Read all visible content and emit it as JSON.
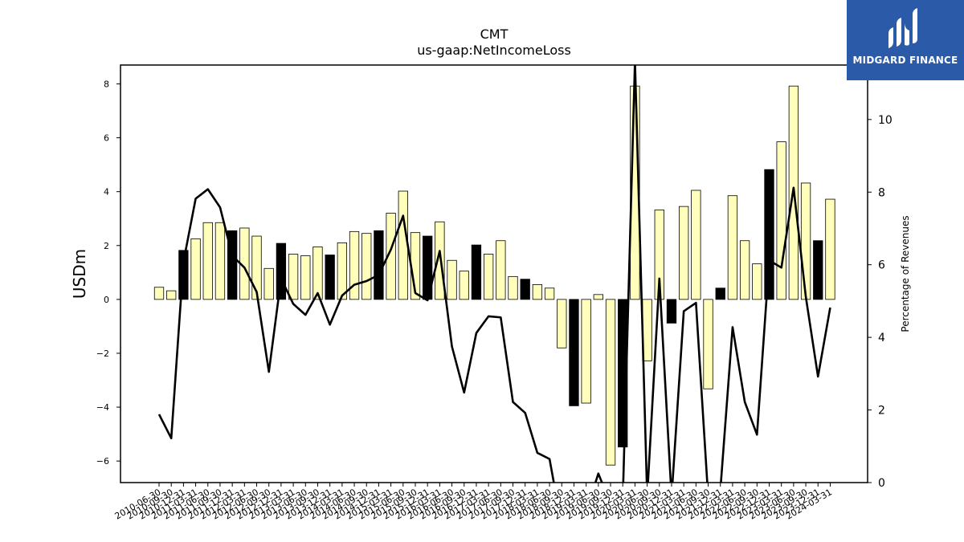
{
  "brand": {
    "name": "MIDGARD FINANCE"
  },
  "chart_data": {
    "type": "bar+line",
    "title": "CMT",
    "subtitle": "us-gaap:NetIncomeLoss",
    "ylabel_left": "USDm",
    "ylabel_right": "Percentage of Revenues",
    "ylim_left": [
      -6.8,
      8.7
    ],
    "ylim_right": [
      0,
      11.5
    ],
    "yticks_left": [
      -6,
      -4,
      -2,
      0,
      2,
      4,
      6,
      8
    ],
    "yticks_right": [
      0,
      2,
      4,
      6,
      8,
      10
    ],
    "colors": {
      "positive_period": "#ffffbb",
      "annual_period": "#000000",
      "line": "#000000"
    },
    "categories": [
      "2010-06-30",
      "2010-09-30",
      "2010-12-31",
      "2011-03-31",
      "2011-06-30",
      "2011-09-30",
      "2011-12-31",
      "2012-03-31",
      "2012-06-30",
      "2012-09-30",
      "2012-12-31",
      "2013-03-31",
      "2013-06-30",
      "2013-09-30",
      "2013-12-31",
      "2014-03-31",
      "2014-06-30",
      "2014-09-30",
      "2014-12-31",
      "2015-03-31",
      "2015-06-30",
      "2015-09-30",
      "2015-12-31",
      "2016-03-31",
      "2016-06-30",
      "2016-09-30",
      "2016-12-31",
      "2017-03-31",
      "2017-06-30",
      "2017-09-30",
      "2017-12-31",
      "2018-03-31",
      "2018-06-30",
      "2018-09-30",
      "2018-12-31",
      "2019-03-31",
      "2019-06-30",
      "2019-09-30",
      "2019-12-31",
      "2020-03-31",
      "2020-06-30",
      "2020-09-30",
      "2020-12-31",
      "2021-03-31",
      "2021-06-30",
      "2021-09-30",
      "2021-12-31",
      "2022-03-31",
      "2022-06-30",
      "2022-09-30",
      "2022-12-31",
      "2023-03-31",
      "2023-06-30",
      "2023-09-30",
      "2023-12-31",
      "2024-03-31"
    ],
    "tick_labels": [
      "2010-06-30",
      "2010-09-30",
      "2010-12-31",
      "2011-03-31",
      "2011-06-30",
      "2011-09-30",
      "2011-12-31",
      "2012-03-31",
      "2012-06-30",
      "2012-09-30",
      "2012-12-31",
      "2013-03-31",
      "2013-06-30",
      "2013-09-30",
      "2013-12-31",
      "2014-03-31",
      "2014-06-30",
      "2014-09-30",
      "2014-12-31",
      "2015-03-31",
      "2015-06-30",
      "2015-09-30",
      "2015-12-31",
      "2016-03-31",
      "2016-06-30",
      "2016-09-30",
      "2016-12-31",
      "2017-03-31",
      "2017-06-30",
      "2017-09-30",
      "2017-12-31",
      "2018-03-31",
      "2018-06-30",
      "2018-09-30",
      "2018-12-31",
      "2019-03-31",
      "2019-06-30",
      "2019-09-30",
      "2019-12-31",
      "2020-03-31",
      "2020-06-30",
      "2020-09-30",
      "2020-12-31",
      "2021-03-31",
      "2021-06-30",
      "2021-09-30",
      "2021-12-31",
      "2022-03-31",
      "2022-06-30",
      "2022-09-30",
      "2022-12-31",
      "2023-03-31",
      "2023-06-30",
      "2023-09-30",
      "2023-12-31",
      "2024-03-31"
    ],
    "bars": [
      0.45,
      0.32,
      1.82,
      2.25,
      2.85,
      2.85,
      2.55,
      2.65,
      2.35,
      1.15,
      2.08,
      1.68,
      1.62,
      1.95,
      1.65,
      2.1,
      2.52,
      2.45,
      2.55,
      3.2,
      4.02,
      2.48,
      2.35,
      2.88,
      1.45,
      1.05,
      2.02,
      1.68,
      2.18,
      0.85,
      0.75,
      0.55,
      0.42,
      -1.8,
      -3.95,
      -3.85,
      0.18,
      -6.15,
      -5.48,
      7.92,
      -2.28,
      3.32,
      -0.88,
      3.45,
      4.05,
      -3.32,
      0.42,
      3.85,
      2.18,
      1.32,
      4.82,
      5.85,
      7.92,
      4.32,
      2.18,
      3.72
    ],
    "bar_annual_flags": [
      false,
      false,
      true,
      false,
      false,
      false,
      true,
      false,
      false,
      false,
      true,
      false,
      false,
      false,
      true,
      false,
      false,
      false,
      true,
      false,
      false,
      false,
      true,
      false,
      false,
      false,
      true,
      false,
      false,
      false,
      true,
      false,
      false,
      false,
      true,
      false,
      false,
      false,
      true,
      false,
      false,
      false,
      true,
      false,
      false,
      false,
      true,
      false,
      false,
      false,
      true,
      false,
      false,
      false,
      true,
      false
    ],
    "line_pct": [
      1.88,
      1.22,
      6.08,
      7.82,
      8.08,
      7.58,
      6.25,
      5.92,
      5.25,
      3.05,
      5.62,
      4.92,
      4.62,
      5.22,
      4.35,
      5.15,
      5.45,
      5.55,
      5.72,
      6.42,
      7.35,
      5.22,
      5.02,
      6.38,
      3.75,
      2.48,
      4.12,
      4.58,
      4.55,
      2.22,
      1.92,
      0.82,
      0.65,
      -1.2,
      -1.5,
      -0.8,
      0.25,
      -0.6,
      -0.5,
      11.6,
      -0.4,
      5.62,
      -0.4,
      4.72,
      4.95,
      -0.4,
      -0.2,
      4.28,
      2.22,
      1.32,
      6.12,
      5.92,
      8.12,
      5.12,
      2.92,
      4.82
    ]
  }
}
